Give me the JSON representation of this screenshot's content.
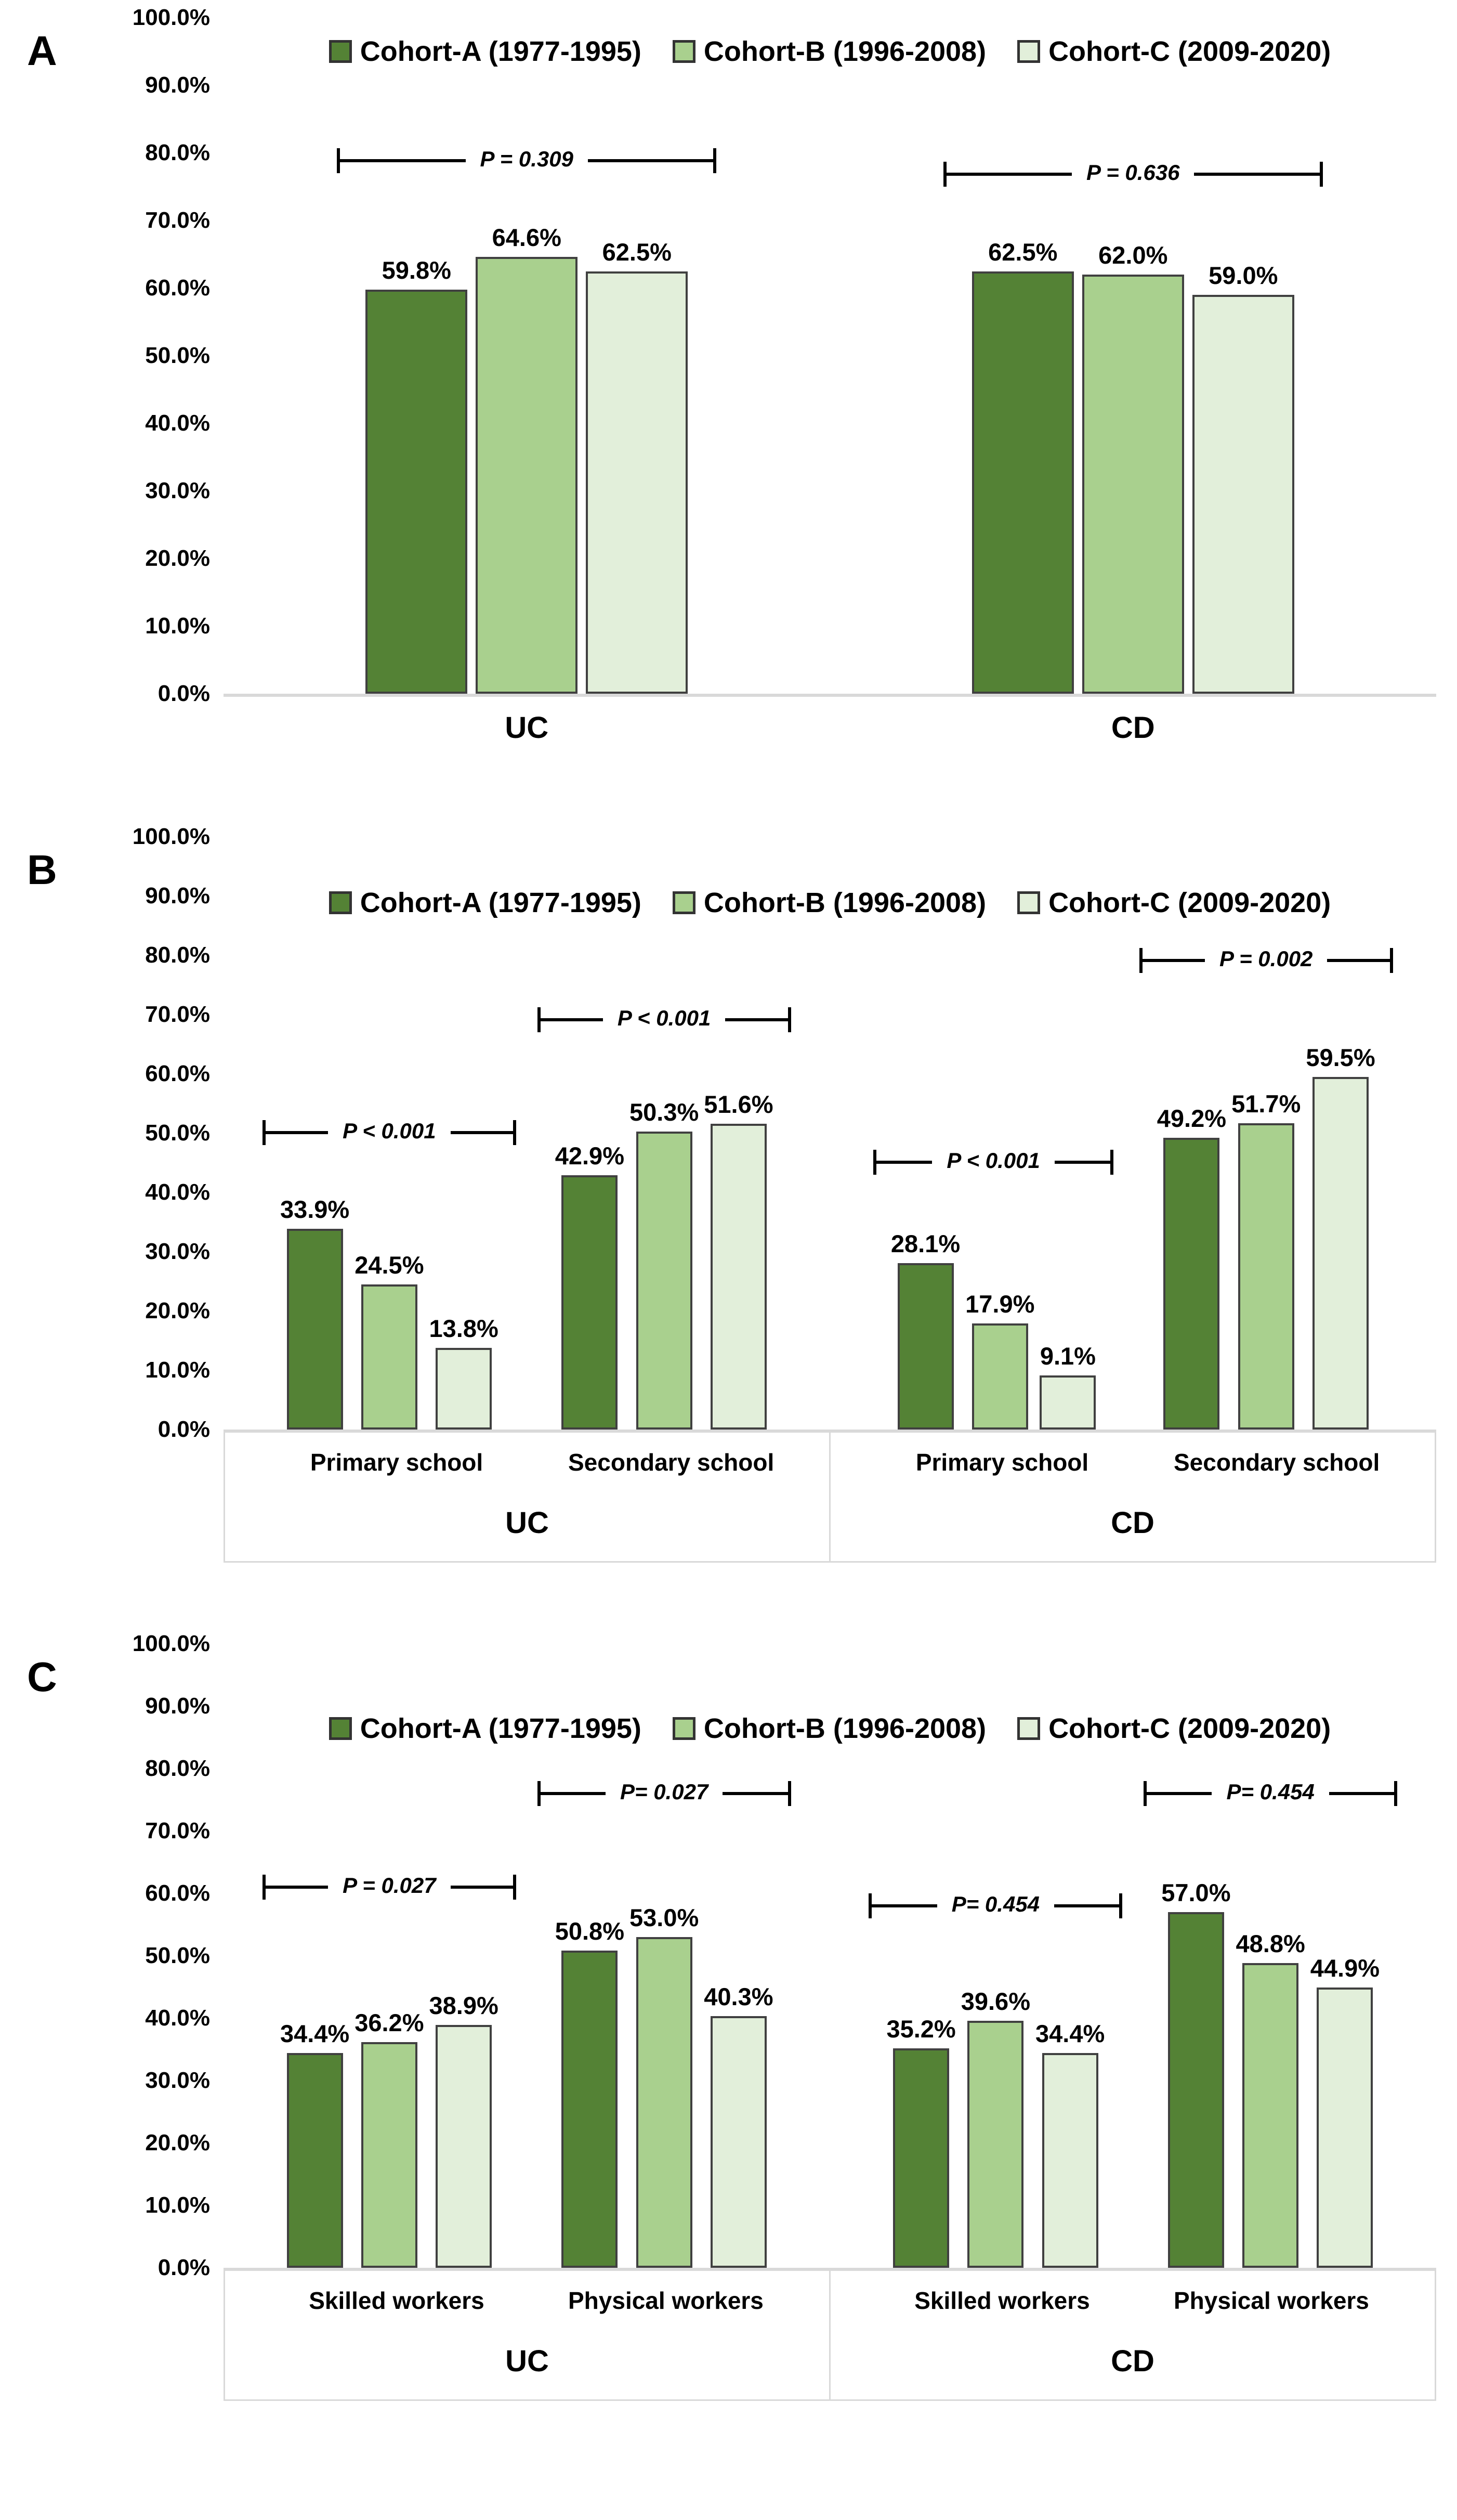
{
  "figure": {
    "background": "#ffffff",
    "bar_border_color": "#404040",
    "baseline_color": "#d9d9d9",
    "axis_box_color": "#d9d9d9"
  },
  "legend": {
    "items": [
      {
        "label": "Cohort-A (1977-1995)",
        "color": "#548235"
      },
      {
        "label": "Cohort-B (1996-2008)",
        "color": "#A9D08E"
      },
      {
        "label": "Cohort-C (2009-2020)",
        "color": "#E2EFDA"
      }
    ]
  },
  "axis": {
    "y_ticks": [
      "100.0%",
      "90.0%",
      "80.0%",
      "70.0%",
      "60.0%",
      "50.0%",
      "40.0%",
      "30.0%",
      "20.0%",
      "10.0%",
      "0.0%"
    ]
  },
  "chart_data": [
    {
      "type": "bar",
      "panel": "A",
      "title": "",
      "xlabel": "",
      "ylabel": "",
      "ylim": [
        0,
        100
      ],
      "grid": false,
      "legend_position": "top-center",
      "series": [
        "Cohort-A (1977-1995)",
        "Cohort-B (1996-2008)",
        "Cohort-C (2009-2020)"
      ],
      "groups": [
        {
          "label": "UC",
          "clusters": [
            {
              "label": "",
              "values": [
                59.8,
                64.6,
                62.5
              ],
              "labels": [
                "59.8%",
                "64.6%",
                "62.5%"
              ],
              "p": {
                "text": "P = 0.309",
                "height_pct": 77
              }
            }
          ]
        },
        {
          "label": "CD",
          "clusters": [
            {
              "label": "",
              "values": [
                62.5,
                62.0,
                59.0
              ],
              "labels": [
                "62.5%",
                "62.0%",
                "59.0%"
              ],
              "p": {
                "text": "P = 0.636",
                "height_pct": 75
              }
            }
          ]
        }
      ]
    },
    {
      "type": "bar",
      "panel": "B",
      "title": "",
      "xlabel": "",
      "ylabel": "",
      "ylim": [
        0,
        100
      ],
      "grid": false,
      "legend_position": "top-center",
      "series": [
        "Cohort-A (1977-1995)",
        "Cohort-B (1996-2008)",
        "Cohort-C (2009-2020)"
      ],
      "groups": [
        {
          "label": "UC",
          "clusters": [
            {
              "label": "Primary school",
              "values": [
                33.9,
                24.5,
                13.8
              ],
              "labels": [
                "33.9%",
                "24.5%",
                "13.8%"
              ],
              "p": {
                "text": "P < 0.001",
                "height_pct": 48
              }
            },
            {
              "label": "Secondary school",
              "values": [
                42.9,
                50.3,
                51.6
              ],
              "labels": [
                "42.9%",
                "50.3%",
                "51.6%"
              ],
              "p": {
                "text": "P < 0.001",
                "height_pct": 67
              }
            }
          ]
        },
        {
          "label": "CD",
          "clusters": [
            {
              "label": "Primary school",
              "values": [
                28.1,
                17.9,
                9.1
              ],
              "labels": [
                "28.1%",
                "17.9%",
                "9.1%"
              ],
              "p": {
                "text": "P < 0.001",
                "height_pct": 43
              }
            },
            {
              "label": "Secondary school",
              "values": [
                49.2,
                51.7,
                59.5
              ],
              "labels": [
                "49.2%",
                "51.7%",
                "59.5%"
              ],
              "p": {
                "text": "P = 0.002",
                "height_pct": 77
              }
            }
          ]
        }
      ]
    },
    {
      "type": "bar",
      "panel": "C",
      "title": "",
      "xlabel": "",
      "ylabel": "",
      "ylim": [
        0,
        100
      ],
      "grid": false,
      "legend_position": "top-center",
      "series": [
        "Cohort-A (1977-1995)",
        "Cohort-B (1996-2008)",
        "Cohort-C (2009-2020)"
      ],
      "groups": [
        {
          "label": "UC",
          "clusters": [
            {
              "label": "Skilled workers",
              "values": [
                34.4,
                36.2,
                38.9
              ],
              "labels": [
                "34.4%",
                "36.2%",
                "38.9%"
              ],
              "p": {
                "text": "P = 0.027",
                "height_pct": 59
              }
            },
            {
              "label": "Physical workers",
              "values": [
                50.8,
                53.0,
                40.3
              ],
              "labels": [
                "50.8%",
                "53.0%",
                "40.3%"
              ],
              "p": {
                "text": "P= 0.027",
                "height_pct": 74
              }
            }
          ]
        },
        {
          "label": "CD",
          "clusters": [
            {
              "label": "Skilled workers",
              "values": [
                35.2,
                39.6,
                34.4
              ],
              "labels": [
                "35.2%",
                "39.6%",
                "34.4%"
              ],
              "p": {
                "text": "P= 0.454",
                "height_pct": 56
              }
            },
            {
              "label": "Physical workers",
              "values": [
                57.0,
                48.8,
                44.9
              ],
              "labels": [
                "57.0%",
                "48.8%",
                "44.9%"
              ],
              "p": {
                "text": "P= 0.454",
                "height_pct": 74
              }
            }
          ]
        }
      ]
    }
  ]
}
